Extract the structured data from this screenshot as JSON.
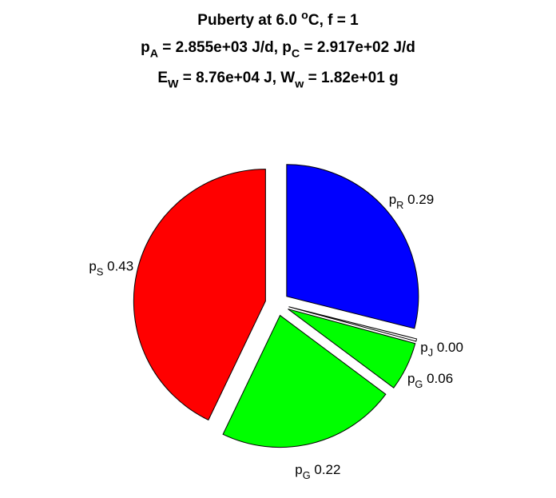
{
  "chart_data": {
    "type": "pie",
    "title": [
      [
        "Puberty at 6.0 ",
        {
          "sup": "o"
        },
        "C, f = 1"
      ],
      [
        "p",
        {
          "sub": "A"
        },
        " = 2.855e+03 J/d,  p",
        {
          "sub": "C"
        },
        " = 2.917e+02 J/d"
      ],
      [
        "E",
        {
          "sub": "W"
        },
        " = 8.76e+04 J, W",
        {
          "sub": "w"
        },
        " = 1.82e+01 g"
      ]
    ],
    "labels": [
      [
        "p",
        {
          "sub": "R"
        }
      ],
      [
        "p",
        {
          "sub": "J"
        }
      ],
      [
        "p",
        {
          "sub": "G"
        }
      ],
      [
        "p",
        {
          "sub": "G"
        }
      ],
      [
        "p",
        {
          "sub": "S"
        }
      ]
    ],
    "values": [
      0.29,
      0.003,
      0.06,
      0.22,
      0.43
    ],
    "value_labels": [
      "0.29",
      "0.00",
      "0.06",
      "0.22",
      "0.43"
    ],
    "colors": [
      "#0000ff",
      "#ffffff",
      "#00ff00",
      "#00ff00",
      "#ff0000"
    ],
    "exploded": true
  }
}
